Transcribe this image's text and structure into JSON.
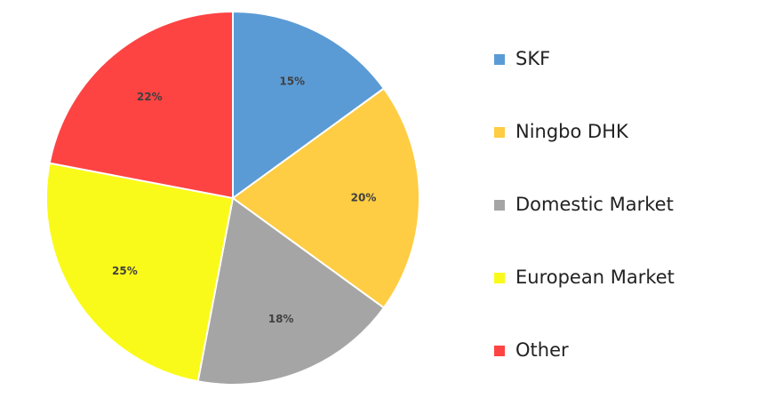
{
  "chart_data": {
    "type": "pie",
    "categories": [
      "SKF",
      "Ningbo DHK",
      "Domestic Market",
      "European Market",
      "Other"
    ],
    "values": [
      15,
      20,
      18,
      25,
      22
    ],
    "value_labels": [
      "15%",
      "20%",
      "18%",
      "25%",
      "22%"
    ],
    "colors": [
      "#5b9bd5",
      "#fecd44",
      "#a5a5a5",
      "#fafa1a",
      "#fe4343"
    ],
    "legend": "right"
  }
}
